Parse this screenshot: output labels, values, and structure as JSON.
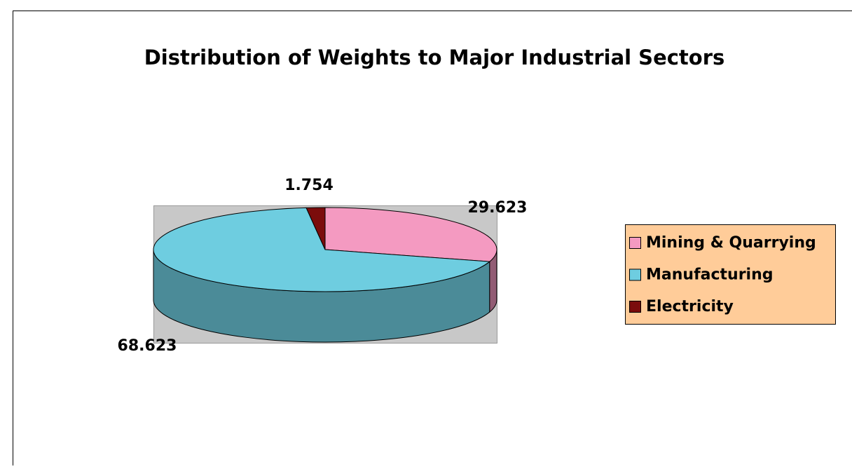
{
  "chart_data": {
    "type": "pie",
    "title": "Distribution of Weights to Major Industrial Sectors",
    "categories": [
      "Mining & Quarrying",
      "Manufacturing",
      "Electricity"
    ],
    "values": [
      29.623,
      68.623,
      1.754
    ],
    "colors": [
      "#f49ac1",
      "#6ecde0",
      "#7b0c0c"
    ],
    "legend": "right"
  }
}
